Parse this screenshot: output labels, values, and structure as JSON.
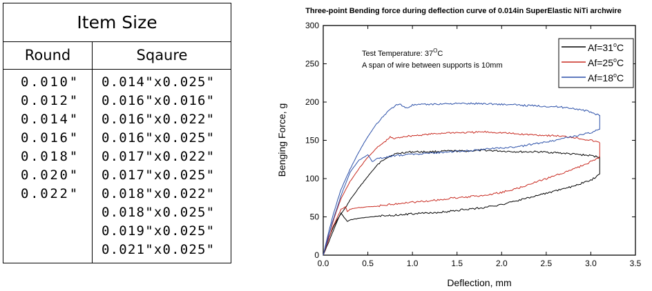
{
  "table": {
    "title": "Item Size",
    "round_header": "Round",
    "square_header": "Sqaure",
    "round": [
      "0.010\"",
      "0.012\"",
      "0.014\"",
      "0.016\"",
      "0.018\"",
      "0.020\"",
      "0.022\""
    ],
    "square": [
      "0.014\"x0.025\"",
      "0.016\"x0.016\"",
      "0.016\"x0.022\"",
      "0.016\"x0.025\"",
      "0.017\"x0.022\"",
      "0.017\"x0.025\"",
      "0.018\"x0.022\"",
      "0.018\"x0.025\"",
      "0.019\"x0.025\"",
      "0.021\"x0.025\""
    ]
  },
  "chart_data": {
    "type": "line",
    "title": "Three-point Bending force during deflection curve of  0.014in SuperElastic NiTi archwire",
    "xlabel": "Deflection,  mm",
    "ylabel": "Benging Force,  g",
    "xlim": [
      0,
      3.5
    ],
    "ylim": [
      0,
      300
    ],
    "xticks": [
      "0.0",
      "0.5",
      "1.0",
      "1.5",
      "2.0",
      "2.5",
      "3.0",
      "3.5"
    ],
    "yticks": [
      "0",
      "50",
      "100",
      "150",
      "200",
      "250",
      "300"
    ],
    "annotations": [
      "Test Temperature: 37",
      "O",
      "C",
      "A span of wire between supports is 10mm"
    ],
    "legend_position": "top-right",
    "series": [
      {
        "name": "Af=31",
        "unit_sup": "o",
        "unit": "C",
        "color": "#000000",
        "loading": [
          [
            0,
            0
          ],
          [
            0.05,
            18
          ],
          [
            0.1,
            33
          ],
          [
            0.15,
            45
          ],
          [
            0.2,
            54
          ],
          [
            0.25,
            62
          ],
          [
            0.3,
            72
          ],
          [
            0.4,
            88
          ],
          [
            0.5,
            103
          ],
          [
            0.55,
            110
          ],
          [
            0.6,
            117
          ],
          [
            0.7,
            127
          ],
          [
            0.8,
            132
          ],
          [
            0.9,
            134
          ],
          [
            1.0,
            135
          ],
          [
            1.2,
            135
          ],
          [
            1.4,
            136
          ],
          [
            1.6,
            136
          ],
          [
            1.8,
            137
          ],
          [
            2.0,
            136
          ],
          [
            2.2,
            135
          ],
          [
            2.4,
            135
          ],
          [
            2.6,
            134
          ],
          [
            2.8,
            132
          ],
          [
            3.0,
            130
          ],
          [
            3.1,
            128
          ]
        ],
        "unloading": [
          [
            3.1,
            128
          ],
          [
            3.1,
            105
          ],
          [
            3.0,
            98
          ],
          [
            2.8,
            90
          ],
          [
            2.6,
            84
          ],
          [
            2.4,
            78
          ],
          [
            2.2,
            72
          ],
          [
            2.0,
            66
          ],
          [
            1.8,
            62
          ],
          [
            1.6,
            60
          ],
          [
            1.4,
            57
          ],
          [
            1.2,
            55
          ],
          [
            1.0,
            54
          ],
          [
            0.8,
            52
          ],
          [
            0.6,
            51
          ],
          [
            0.4,
            48
          ],
          [
            0.3,
            46
          ],
          [
            0.27,
            44
          ],
          [
            0.23,
            50
          ],
          [
            0.2,
            55
          ],
          [
            0.17,
            48
          ],
          [
            0.1,
            28
          ],
          [
            0.05,
            14
          ],
          [
            0,
            0
          ]
        ]
      },
      {
        "name": "Af=25",
        "unit_sup": "o",
        "unit": "C",
        "color": "#c8281e",
        "loading": [
          [
            0,
            0
          ],
          [
            0.05,
            22
          ],
          [
            0.1,
            40
          ],
          [
            0.15,
            58
          ],
          [
            0.2,
            74
          ],
          [
            0.3,
            96
          ],
          [
            0.4,
            113
          ],
          [
            0.5,
            128
          ],
          [
            0.6,
            140
          ],
          [
            0.7,
            149
          ],
          [
            0.75,
            154
          ],
          [
            0.8,
            152
          ],
          [
            0.9,
            155
          ],
          [
            1.0,
            156
          ],
          [
            1.2,
            158
          ],
          [
            1.4,
            160
          ],
          [
            1.6,
            160
          ],
          [
            1.8,
            161
          ],
          [
            2.0,
            160
          ],
          [
            2.2,
            158
          ],
          [
            2.4,
            157
          ],
          [
            2.6,
            156
          ],
          [
            2.8,
            154
          ],
          [
            3.0,
            150
          ],
          [
            3.1,
            147
          ]
        ],
        "unloading": [
          [
            3.1,
            147
          ],
          [
            3.1,
            128
          ],
          [
            3.0,
            122
          ],
          [
            2.8,
            112
          ],
          [
            2.6,
            104
          ],
          [
            2.4,
            96
          ],
          [
            2.2,
            88
          ],
          [
            2.0,
            82
          ],
          [
            1.8,
            78
          ],
          [
            1.6,
            76
          ],
          [
            1.4,
            74
          ],
          [
            1.2,
            71
          ],
          [
            1.0,
            69
          ],
          [
            0.8,
            67
          ],
          [
            0.6,
            64
          ],
          [
            0.4,
            62
          ],
          [
            0.3,
            60
          ],
          [
            0.27,
            57
          ],
          [
            0.25,
            63
          ],
          [
            0.2,
            60
          ],
          [
            0.1,
            35
          ],
          [
            0.05,
            17
          ],
          [
            0,
            0
          ]
        ]
      },
      {
        "name": "Af=18",
        "unit_sup": "o",
        "unit": "C",
        "color": "#2a4fa8",
        "loading": [
          [
            0,
            0
          ],
          [
            0.05,
            25
          ],
          [
            0.1,
            48
          ],
          [
            0.15,
            68
          ],
          [
            0.2,
            86
          ],
          [
            0.3,
            112
          ],
          [
            0.4,
            135
          ],
          [
            0.5,
            155
          ],
          [
            0.6,
            172
          ],
          [
            0.7,
            185
          ],
          [
            0.8,
            195
          ],
          [
            0.87,
            197
          ],
          [
            0.93,
            192
          ],
          [
            1.0,
            196
          ],
          [
            1.2,
            197
          ],
          [
            1.4,
            198
          ],
          [
            1.6,
            198
          ],
          [
            1.8,
            198
          ],
          [
            2.0,
            197
          ],
          [
            2.2,
            196
          ],
          [
            2.4,
            195
          ],
          [
            2.6,
            194
          ],
          [
            2.8,
            192
          ],
          [
            3.0,
            187
          ],
          [
            3.1,
            182
          ]
        ],
        "unloading": [
          [
            3.1,
            182
          ],
          [
            3.1,
            165
          ],
          [
            3.0,
            160
          ],
          [
            2.8,
            155
          ],
          [
            2.6,
            150
          ],
          [
            2.4,
            146
          ],
          [
            2.2,
            142
          ],
          [
            2.0,
            140
          ],
          [
            1.8,
            138
          ],
          [
            1.6,
            136
          ],
          [
            1.4,
            135
          ],
          [
            1.2,
            133
          ],
          [
            1.0,
            132
          ],
          [
            0.8,
            130
          ],
          [
            0.7,
            128
          ],
          [
            0.6,
            126
          ],
          [
            0.55,
            122
          ],
          [
            0.52,
            128
          ],
          [
            0.5,
            131
          ],
          [
            0.4,
            124
          ],
          [
            0.3,
            108
          ],
          [
            0.2,
            78
          ],
          [
            0.1,
            42
          ],
          [
            0.05,
            20
          ],
          [
            0,
            0
          ]
        ]
      }
    ]
  }
}
